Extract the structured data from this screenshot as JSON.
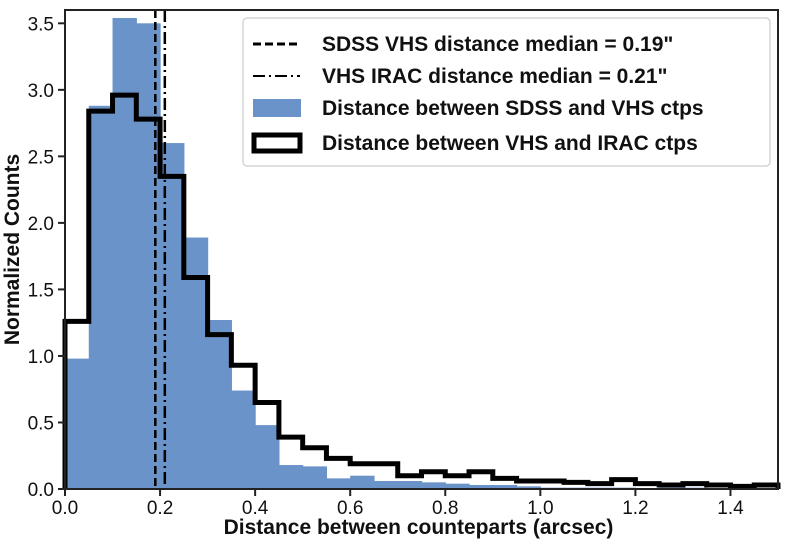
{
  "chart_data": {
    "type": "histogram",
    "xlabel": "Distance between counteparts (arcsec)",
    "ylabel": "Normalized Counts",
    "xlim": [
      0,
      1.5
    ],
    "ylim": [
      0,
      3.6
    ],
    "xticks": [
      0.0,
      0.2,
      0.4,
      0.6,
      0.8,
      1.0,
      1.2,
      1.4
    ],
    "xtick_labels": [
      "0.0",
      "0.2",
      "0.4",
      "0.6",
      "0.8",
      "1.0",
      "1.2",
      "1.4"
    ],
    "yticks": [
      0.0,
      0.5,
      1.0,
      1.5,
      2.0,
      2.5,
      3.0,
      3.5
    ],
    "ytick_labels": [
      "0.0",
      "0.5",
      "1.0",
      "1.5",
      "2.0",
      "2.5",
      "3.0",
      "3.5"
    ],
    "bin_edges": [
      0.0,
      0.05,
      0.1,
      0.15,
      0.2,
      0.25,
      0.3,
      0.35,
      0.4,
      0.45,
      0.5,
      0.55,
      0.6,
      0.65,
      0.7,
      0.75,
      0.8,
      0.85,
      0.9,
      0.95,
      1.0,
      1.05,
      1.1,
      1.15,
      1.2,
      1.25,
      1.3,
      1.35,
      1.4,
      1.45,
      1.5
    ],
    "series": [
      {
        "name": "Distance between SDSS and VHS ctps",
        "style": "filled",
        "color": "#6a93ca",
        "values": [
          0.98,
          2.88,
          3.54,
          3.5,
          2.6,
          1.89,
          1.27,
          0.74,
          0.48,
          0.18,
          0.17,
          0.08,
          0.1,
          0.06,
          0.06,
          0.05,
          0.04,
          0.03,
          0.03,
          0.02,
          0.01,
          0.01,
          0.01,
          0.01,
          0.0,
          0.01,
          0.01,
          0.0,
          0.0,
          0.0
        ]
      },
      {
        "name": "Distance between VHS and IRAC ctps",
        "style": "step",
        "color": "#000000",
        "values": [
          1.26,
          2.84,
          2.96,
          2.78,
          2.35,
          1.59,
          1.16,
          0.93,
          0.65,
          0.39,
          0.31,
          0.23,
          0.19,
          0.19,
          0.1,
          0.13,
          0.1,
          0.13,
          0.08,
          0.06,
          0.06,
          0.05,
          0.04,
          0.07,
          0.04,
          0.03,
          0.04,
          0.03,
          0.02,
          0.03
        ]
      }
    ],
    "vlines": [
      {
        "name": "SDSS VHS distance median = 0.19\"",
        "x": 0.19,
        "style": "dashed",
        "color": "#000000"
      },
      {
        "name": "VHS IRAC distance median = 0.21\"",
        "x": 0.21,
        "style": "dashdot",
        "color": "#000000"
      }
    ],
    "legend": {
      "position": "upper-right",
      "entries": [
        "SDSS VHS distance median = 0.19\"",
        "VHS IRAC distance median = 0.21\"",
        "Distance between SDSS and VHS ctps",
        "Distance between VHS and IRAC ctps"
      ]
    }
  }
}
